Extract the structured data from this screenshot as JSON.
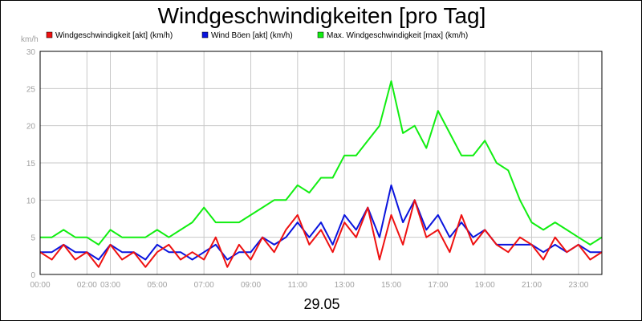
{
  "chart_data": {
    "type": "line",
    "title": "Windgeschwindigkeiten [pro Tag]",
    "xlabel": "29.05",
    "ylabel": "km/h",
    "ylim": [
      0,
      30
    ],
    "yticks": [
      "0",
      "5",
      "10",
      "15",
      "20",
      "25",
      "30"
    ],
    "xlim": [
      0,
      24
    ],
    "xticks": [
      {
        "x": 0,
        "label": "00:00"
      },
      {
        "x": 2,
        "label": "02:00"
      },
      {
        "x": 3,
        "label": "03:00"
      },
      {
        "x": 5,
        "label": "05:00"
      },
      {
        "x": 7,
        "label": "07:00"
      },
      {
        "x": 9,
        "label": "09:00"
      },
      {
        "x": 11,
        "label": "11:00"
      },
      {
        "x": 13,
        "label": "13:00"
      },
      {
        "x": 15,
        "label": "15:00"
      },
      {
        "x": 17,
        "label": "17:00"
      },
      {
        "x": 19,
        "label": "19:00"
      },
      {
        "x": 21,
        "label": "21:00"
      },
      {
        "x": 23,
        "label": "23:00"
      }
    ],
    "grid": true,
    "legend_position": "top-left",
    "series": [
      {
        "name": "Windgeschwindigkeit [akt] (km/h)",
        "color": "#ee1111",
        "x": [
          0,
          0.5,
          1,
          1.5,
          2,
          2.5,
          3,
          3.5,
          4,
          4.5,
          5,
          5.5,
          6,
          6.5,
          7,
          7.5,
          8,
          8.5,
          9,
          9.5,
          10,
          10.5,
          11,
          11.5,
          12,
          12.5,
          13,
          13.5,
          14,
          14.5,
          15,
          15.5,
          16,
          16.5,
          17,
          17.5,
          18,
          18.5,
          19,
          19.5,
          20,
          20.5,
          21,
          21.5,
          22,
          22.5,
          23,
          23.5,
          24
        ],
        "values": [
          3,
          2,
          4,
          2,
          3,
          1,
          4,
          2,
          3,
          1,
          3,
          4,
          2,
          3,
          2,
          5,
          1,
          4,
          2,
          5,
          3,
          6,
          8,
          4,
          6,
          3,
          7,
          5,
          9,
          2,
          8,
          4,
          10,
          5,
          6,
          3,
          8,
          4,
          6,
          4,
          3,
          5,
          4,
          2,
          5,
          3,
          4,
          2,
          3
        ]
      },
      {
        "name": "Wind Böen [akt] (km/h)",
        "color": "#0a14dd",
        "x": [
          0,
          0.5,
          1,
          1.5,
          2,
          2.5,
          3,
          3.5,
          4,
          4.5,
          5,
          5.5,
          6,
          6.5,
          7,
          7.5,
          8,
          8.5,
          9,
          9.5,
          10,
          10.5,
          11,
          11.5,
          12,
          12.5,
          13,
          13.5,
          14,
          14.5,
          15,
          15.5,
          16,
          16.5,
          17,
          17.5,
          18,
          18.5,
          19,
          19.5,
          20,
          20.5,
          21,
          21.5,
          22,
          22.5,
          23,
          23.5,
          24
        ],
        "values": [
          3,
          3,
          4,
          3,
          3,
          2,
          4,
          3,
          3,
          2,
          4,
          3,
          3,
          2,
          3,
          4,
          2,
          3,
          3,
          5,
          4,
          5,
          7,
          5,
          7,
          4,
          8,
          6,
          9,
          5,
          12,
          7,
          10,
          6,
          8,
          5,
          7,
          5,
          6,
          4,
          4,
          4,
          4,
          3,
          4,
          3,
          4,
          3,
          3
        ]
      },
      {
        "name": "Max. Windgeschwindigkeit [max] (km/h)",
        "color": "#11ee11",
        "x": [
          0,
          0.5,
          1,
          1.5,
          2,
          2.5,
          3,
          3.5,
          4,
          4.5,
          5,
          5.5,
          6,
          6.5,
          7,
          7.5,
          8,
          8.5,
          9,
          9.5,
          10,
          10.5,
          11,
          11.5,
          12,
          12.5,
          13,
          13.5,
          14,
          14.5,
          15,
          15.5,
          16,
          16.5,
          17,
          17.5,
          18,
          18.5,
          19,
          19.5,
          20,
          20.5,
          21,
          21.5,
          22,
          22.5,
          23,
          23.5,
          24
        ],
        "values": [
          5,
          5,
          6,
          5,
          5,
          4,
          6,
          5,
          5,
          5,
          6,
          5,
          6,
          7,
          9,
          7,
          7,
          7,
          8,
          9,
          10,
          10,
          12,
          11,
          13,
          13,
          16,
          16,
          18,
          20,
          26,
          19,
          20,
          17,
          22,
          19,
          16,
          16,
          18,
          15,
          14,
          10,
          7,
          6,
          7,
          6,
          5,
          4,
          5
        ]
      }
    ]
  }
}
